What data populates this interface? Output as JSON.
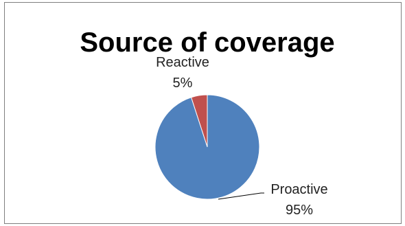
{
  "chart_data": {
    "type": "pie",
    "title": "Source of coverage",
    "categories": [
      "Reactive",
      "Proactive"
    ],
    "values": [
      5,
      95
    ],
    "value_labels": [
      "5%",
      "95%"
    ],
    "colors": [
      "#c0504d",
      "#4f81bd"
    ],
    "legend": "none"
  }
}
